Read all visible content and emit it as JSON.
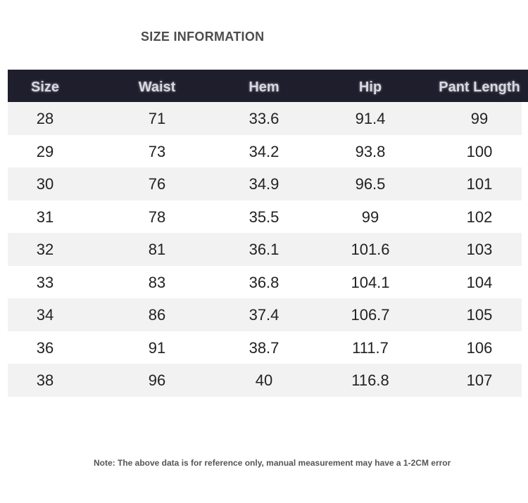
{
  "header": {
    "title": "SIZE INFORMATION"
  },
  "table": {
    "columns": [
      "Size",
      "Waist",
      "Hem",
      "Hip",
      "Pant Length"
    ],
    "rows": [
      [
        28,
        71,
        33.6,
        91.4,
        99
      ],
      [
        29,
        73,
        34.2,
        93.8,
        100
      ],
      [
        30,
        76,
        34.9,
        96.5,
        101
      ],
      [
        31,
        78,
        35.5,
        99,
        102
      ],
      [
        32,
        81,
        36.1,
        101.6,
        103
      ],
      [
        33,
        83,
        36.8,
        104.1,
        104
      ],
      [
        34,
        86,
        37.4,
        106.7,
        105
      ],
      [
        36,
        91,
        38.7,
        111.7,
        106
      ],
      [
        38,
        96,
        40,
        116.8,
        107
      ]
    ]
  },
  "footer": {
    "note": "Note: The above data is for reference only, manual measurement may have a 1-2CM error"
  }
}
